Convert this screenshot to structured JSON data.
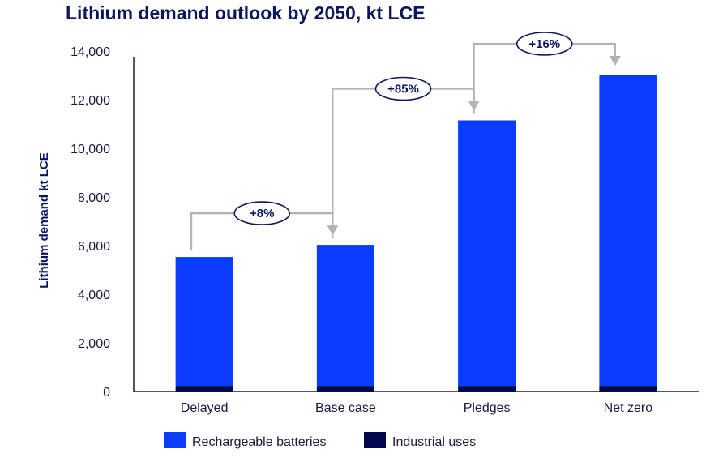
{
  "chart_data": {
    "type": "bar",
    "stacked": true,
    "title": "Lithium demand outlook by 2050, kt LCE",
    "ylabel": "Lithium demand kt LCE",
    "xlabel": "",
    "ylim": [
      0,
      14000
    ],
    "yticks": [
      0,
      2000,
      4000,
      6000,
      8000,
      10000,
      12000,
      14000
    ],
    "ytick_labels": [
      "0",
      "2,000",
      "4,000",
      "6,000",
      "8,000",
      "10,000",
      "12,000",
      "14,000"
    ],
    "categories": [
      "Delayed",
      "Base case",
      "Pledges",
      "Net zero"
    ],
    "series": [
      {
        "name": "Industrial uses",
        "values": [
          230,
          230,
          230,
          230
        ],
        "color": "#00094d"
      },
      {
        "name": "Rechargeable batteries",
        "values": [
          5300,
          5800,
          10920,
          12770
        ],
        "color": "#0a3cff"
      }
    ],
    "legend_order": [
      "Rechargeable batteries",
      "Industrial uses"
    ],
    "legend_position": "bottom",
    "grid": false,
    "annotations": [
      {
        "from": 0,
        "to": 1,
        "label": "+8%"
      },
      {
        "from": 1,
        "to": 2,
        "label": "+85%"
      },
      {
        "from": 2,
        "to": 3,
        "label": "+16%"
      }
    ]
  }
}
